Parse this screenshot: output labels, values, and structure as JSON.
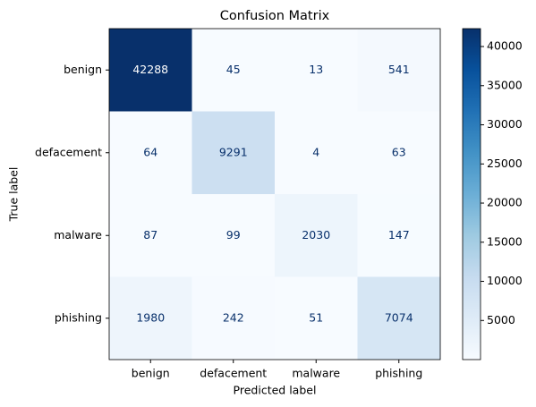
{
  "chart_data": {
    "type": "heatmap",
    "title": "Confusion Matrix",
    "xlabel": "Predicted label",
    "ylabel": "True label",
    "x_categories": [
      "benign",
      "defacement",
      "malware",
      "phishing"
    ],
    "y_categories": [
      "benign",
      "defacement",
      "malware",
      "phishing"
    ],
    "values": [
      [
        42288,
        45,
        13,
        541
      ],
      [
        64,
        9291,
        4,
        63
      ],
      [
        87,
        99,
        2030,
        147
      ],
      [
        1980,
        242,
        51,
        7074
      ]
    ],
    "colormap": "Blues",
    "clim": [
      4,
      42288
    ],
    "colorbar_ticks": [
      5000,
      10000,
      15000,
      20000,
      25000,
      30000,
      35000,
      40000
    ]
  }
}
